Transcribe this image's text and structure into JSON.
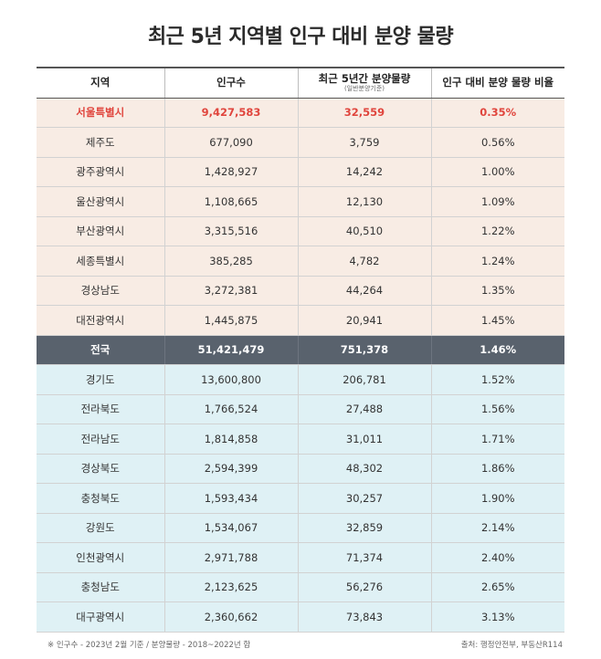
{
  "title": "최근 5년 지역별 인구 대비 분양 물량",
  "table": {
    "headers": {
      "region": "지역",
      "population": "인구수",
      "supply": "최근 5년간 분양물량",
      "supply_sub": "(일반분양기준)",
      "ratio": "인구 대비 분양 물량 비율"
    },
    "upper_rows": [
      {
        "region": "서울특별시",
        "population": "9,427,583",
        "supply": "32,559",
        "ratio": "0.35%"
      },
      {
        "region": "제주도",
        "population": "677,090",
        "supply": "3,759",
        "ratio": "0.56%"
      },
      {
        "region": "광주광역시",
        "population": "1,428,927",
        "supply": "14,242",
        "ratio": "1.00%"
      },
      {
        "region": "울산광역시",
        "population": "1,108,665",
        "supply": "12,130",
        "ratio": "1.09%"
      },
      {
        "region": "부산광역시",
        "population": "3,315,516",
        "supply": "40,510",
        "ratio": "1.22%"
      },
      {
        "region": "세종특별시",
        "population": "385,285",
        "supply": "4,782",
        "ratio": "1.24%"
      },
      {
        "region": "경상남도",
        "population": "3,272,381",
        "supply": "44,264",
        "ratio": "1.35%"
      },
      {
        "region": "대전광역시",
        "population": "1,445,875",
        "supply": "20,941",
        "ratio": "1.45%"
      }
    ],
    "national": {
      "region": "전국",
      "population": "51,421,479",
      "supply": "751,378",
      "ratio": "1.46%"
    },
    "lower_rows": [
      {
        "region": "경기도",
        "population": "13,600,800",
        "supply": "206,781",
        "ratio": "1.52%"
      },
      {
        "region": "전라북도",
        "population": "1,766,524",
        "supply": "27,488",
        "ratio": "1.56%"
      },
      {
        "region": "전라남도",
        "population": "1,814,858",
        "supply": "31,011",
        "ratio": "1.71%"
      },
      {
        "region": "경상북도",
        "population": "2,594,399",
        "supply": "48,302",
        "ratio": "1.86%"
      },
      {
        "region": "충청북도",
        "population": "1,593,434",
        "supply": "30,257",
        "ratio": "1.90%"
      },
      {
        "region": "강원도",
        "population": "1,534,067",
        "supply": "32,859",
        "ratio": "2.14%"
      },
      {
        "region": "인천광역시",
        "population": "2,971,788",
        "supply": "71,374",
        "ratio": "2.40%"
      },
      {
        "region": "충청남도",
        "population": "2,123,625",
        "supply": "56,276",
        "ratio": "2.65%"
      },
      {
        "region": "대구광역시",
        "population": "2,360,662",
        "supply": "73,843",
        "ratio": "3.13%"
      }
    ]
  },
  "footnote": "※ 인구수 - 2023년 2월 기준 / 분양물량 - 2018~2022년 합",
  "source": "출처: 행정안전부, 부동산R114",
  "colors": {
    "highlight_text": "#e0453d",
    "upper_bg": "#f8ece4",
    "national_bg": "#59626d",
    "lower_bg": "#dff1f5"
  }
}
